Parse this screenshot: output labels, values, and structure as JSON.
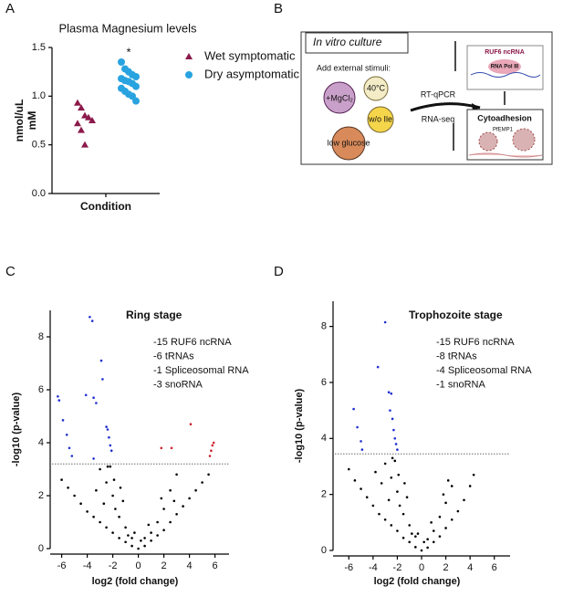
{
  "panel_labels": [
    "A",
    "B",
    "C",
    "D"
  ],
  "chart_data": [
    {
      "type": "dot",
      "title": "Plasma Magnesium levels",
      "y_label": [
        "nmol/uL",
        "mM"
      ],
      "x_label": "Condition",
      "annotation": "*",
      "ylim": [
        0,
        1.5
      ],
      "yticks": [
        {
          "value": 0,
          "label": "0.0"
        },
        0.5,
        {
          "value": 1,
          "label": "1.0"
        },
        1.5
      ],
      "series": [
        {
          "name": "Wet symptomatic",
          "color": "#8b1a4a",
          "marker": "triangle",
          "values": [
            0.93,
            0.88,
            0.8,
            0.78,
            0.75,
            0.72,
            0.65,
            0.5
          ]
        },
        {
          "name": "Dry asymptomatic",
          "color": "#29a3e0",
          "marker": "circle",
          "values": [
            1.35,
            1.28,
            1.25,
            1.22,
            1.2,
            1.18,
            1.16,
            1.15,
            1.13,
            1.1,
            1.08,
            1.05,
            1.02,
            1,
            0.95
          ]
        }
      ]
    },
    {
      "type": "scatter",
      "title": "Ring stage",
      "annotation": [
        "-15 RUF6 ncRNA",
        "-6 tRNAs",
        "-1 Spliceosomal RNA",
        "-3 snoRNA"
      ],
      "x_label": "log2 (fold change)",
      "y_label": "-log10 (p-value)",
      "threshold": 3.2,
      "xlim": [
        -6.9,
        7.1
      ],
      "xticks": [
        -6,
        -4,
        -2,
        0,
        2,
        4,
        6
      ],
      "ylim": [
        0,
        9
      ],
      "yticks": [
        0,
        2,
        4,
        6,
        8
      ],
      "series": [
        {
          "color": "#000000",
          "x": [
            -6,
            -5.5,
            -5,
            -4.5,
            -4,
            -3.5,
            -3,
            -2.5,
            -2,
            -1.5,
            -1,
            -0.5,
            0,
            0.5,
            1,
            1.5,
            2,
            2.5,
            3,
            3.5,
            4,
            4.5,
            5,
            5.5,
            -2,
            -2.5,
            -1.8,
            -1.5,
            -1,
            -0.8,
            -3,
            -2.2,
            1,
            1.5,
            2,
            2.5,
            3,
            -1.2,
            -0.5,
            0.5,
            -2.7,
            -1.9,
            -3.3,
            0.8,
            1.8,
            -0.3,
            0.2,
            -1.4,
            2.8,
            -2.4
          ],
          "values": [
            2.6,
            2.3,
            2,
            1.7,
            1.4,
            1.2,
            1,
            0.8,
            0.6,
            0.4,
            0.25,
            0.1,
            0,
            0.1,
            0.3,
            0.5,
            0.7,
            1,
            1.3,
            1.6,
            1.9,
            2.2,
            2.5,
            2.8,
            2,
            2.5,
            1.5,
            1.2,
            0.8,
            0.5,
            3,
            3.1,
            0.6,
            1,
            1.5,
            2.2,
            2.8,
            1.8,
            0.4,
            0.4,
            1.7,
            2.6,
            2.2,
            0.9,
            1.9,
            0.6,
            0.3,
            2.3,
            1.8,
            3.1
          ]
        },
        {
          "color": "#1f2fd0",
          "x": [
            -6.3,
            -6.2,
            -5.9,
            -5.6,
            -5.4,
            -5.2,
            -3.8,
            -3.6,
            -4.1,
            -3.5,
            -3.3,
            -2.9,
            -2.8,
            -2.5,
            -2.4,
            -2.3,
            -2.2,
            -2.1,
            -3.5
          ],
          "values": [
            5.75,
            5.6,
            4.85,
            4.3,
            3.8,
            3.5,
            8.75,
            8.6,
            5.8,
            5.7,
            5.5,
            7.1,
            6.4,
            4.6,
            4.5,
            4.2,
            3.9,
            3.7,
            3.4
          ]
        },
        {
          "color": "#d0202a",
          "x": [
            1.8,
            2.6,
            4.1,
            5.8,
            5.7,
            5.6,
            5.9
          ],
          "values": [
            3.8,
            3.8,
            4.7,
            3.9,
            3.7,
            3.5,
            4
          ]
        }
      ]
    },
    {
      "type": "scatter",
      "title": "Trophozoite stage",
      "annotation": [
        "-15 RUF6 ncRNA",
        "-8 tRNAs",
        "-4 Spliceosomal RNA",
        "-1 snoRNA"
      ],
      "x_label": "log2 (fold change)",
      "y_label": "-log10 (p-value)",
      "threshold": 3.45,
      "xlim": [
        -7.3,
        7.3
      ],
      "xticks": [
        -6,
        -4,
        -2,
        0,
        2,
        4,
        6
      ],
      "ylim": [
        0,
        8.9
      ],
      "yticks": [
        0,
        2,
        4,
        6,
        8
      ],
      "series": [
        {
          "color": "#000000",
          "x": [
            -6,
            -5.5,
            -5,
            -4.5,
            -4,
            -3.5,
            -3,
            -2.5,
            -2,
            -1.5,
            -1,
            -0.5,
            0,
            0.5,
            1,
            1.5,
            2,
            2.5,
            3,
            3.5,
            4,
            4.3,
            -2,
            -2.5,
            -1.8,
            -1.5,
            -1,
            -0.8,
            -3,
            -2.2,
            1,
            1.5,
            2,
            2.5,
            -1.2,
            -0.5,
            0.5,
            -2.7,
            -1.9,
            -3.3,
            0.8,
            1.8,
            -0.3,
            0.2,
            -1.4,
            2.2,
            -2.4,
            -3.8
          ],
          "values": [
            2.9,
            2.5,
            2.2,
            1.9,
            1.6,
            1.3,
            1.1,
            0.9,
            0.7,
            0.45,
            0.3,
            0.12,
            0,
            0.1,
            0.3,
            0.5,
            0.8,
            1.1,
            1.4,
            1.8,
            2.3,
            2.7,
            2.1,
            2.6,
            1.6,
            1.3,
            0.9,
            0.6,
            3.1,
            3.2,
            0.7,
            1.2,
            1.7,
            2.3,
            1.9,
            0.5,
            0.4,
            1.8,
            2.7,
            2.4,
            1,
            2,
            0.6,
            0.3,
            2.4,
            2.5,
            3.3,
            2.8
          ]
        },
        {
          "color": "#1f2fd0",
          "x": [
            -3,
            -3.6,
            -5.6,
            -5.3,
            -5,
            -4.9,
            -2.7,
            -2.5,
            -2.6,
            -2.4,
            -2.3,
            -2.2,
            -2.1,
            -2
          ],
          "values": [
            8.15,
            6.55,
            5.05,
            4.4,
            3.9,
            3.6,
            5.65,
            5.6,
            5,
            4.7,
            4.3,
            4,
            3.8,
            3.6
          ]
        }
      ]
    }
  ],
  "diagram": {
    "box_title": "In vitro culture",
    "stimuli_title": "Add external stimuli:",
    "stimuli": [
      "+MgCl₂",
      "40°C",
      "w/o Ile",
      "low glucose"
    ],
    "methods": [
      "RT-qPCR",
      "RNA-seq"
    ],
    "ncrna": "RUF6 ncRNA",
    "polymerase": "RNA Pol III",
    "outcome": "Cytoadhesion",
    "protein": "PfEMP1"
  }
}
